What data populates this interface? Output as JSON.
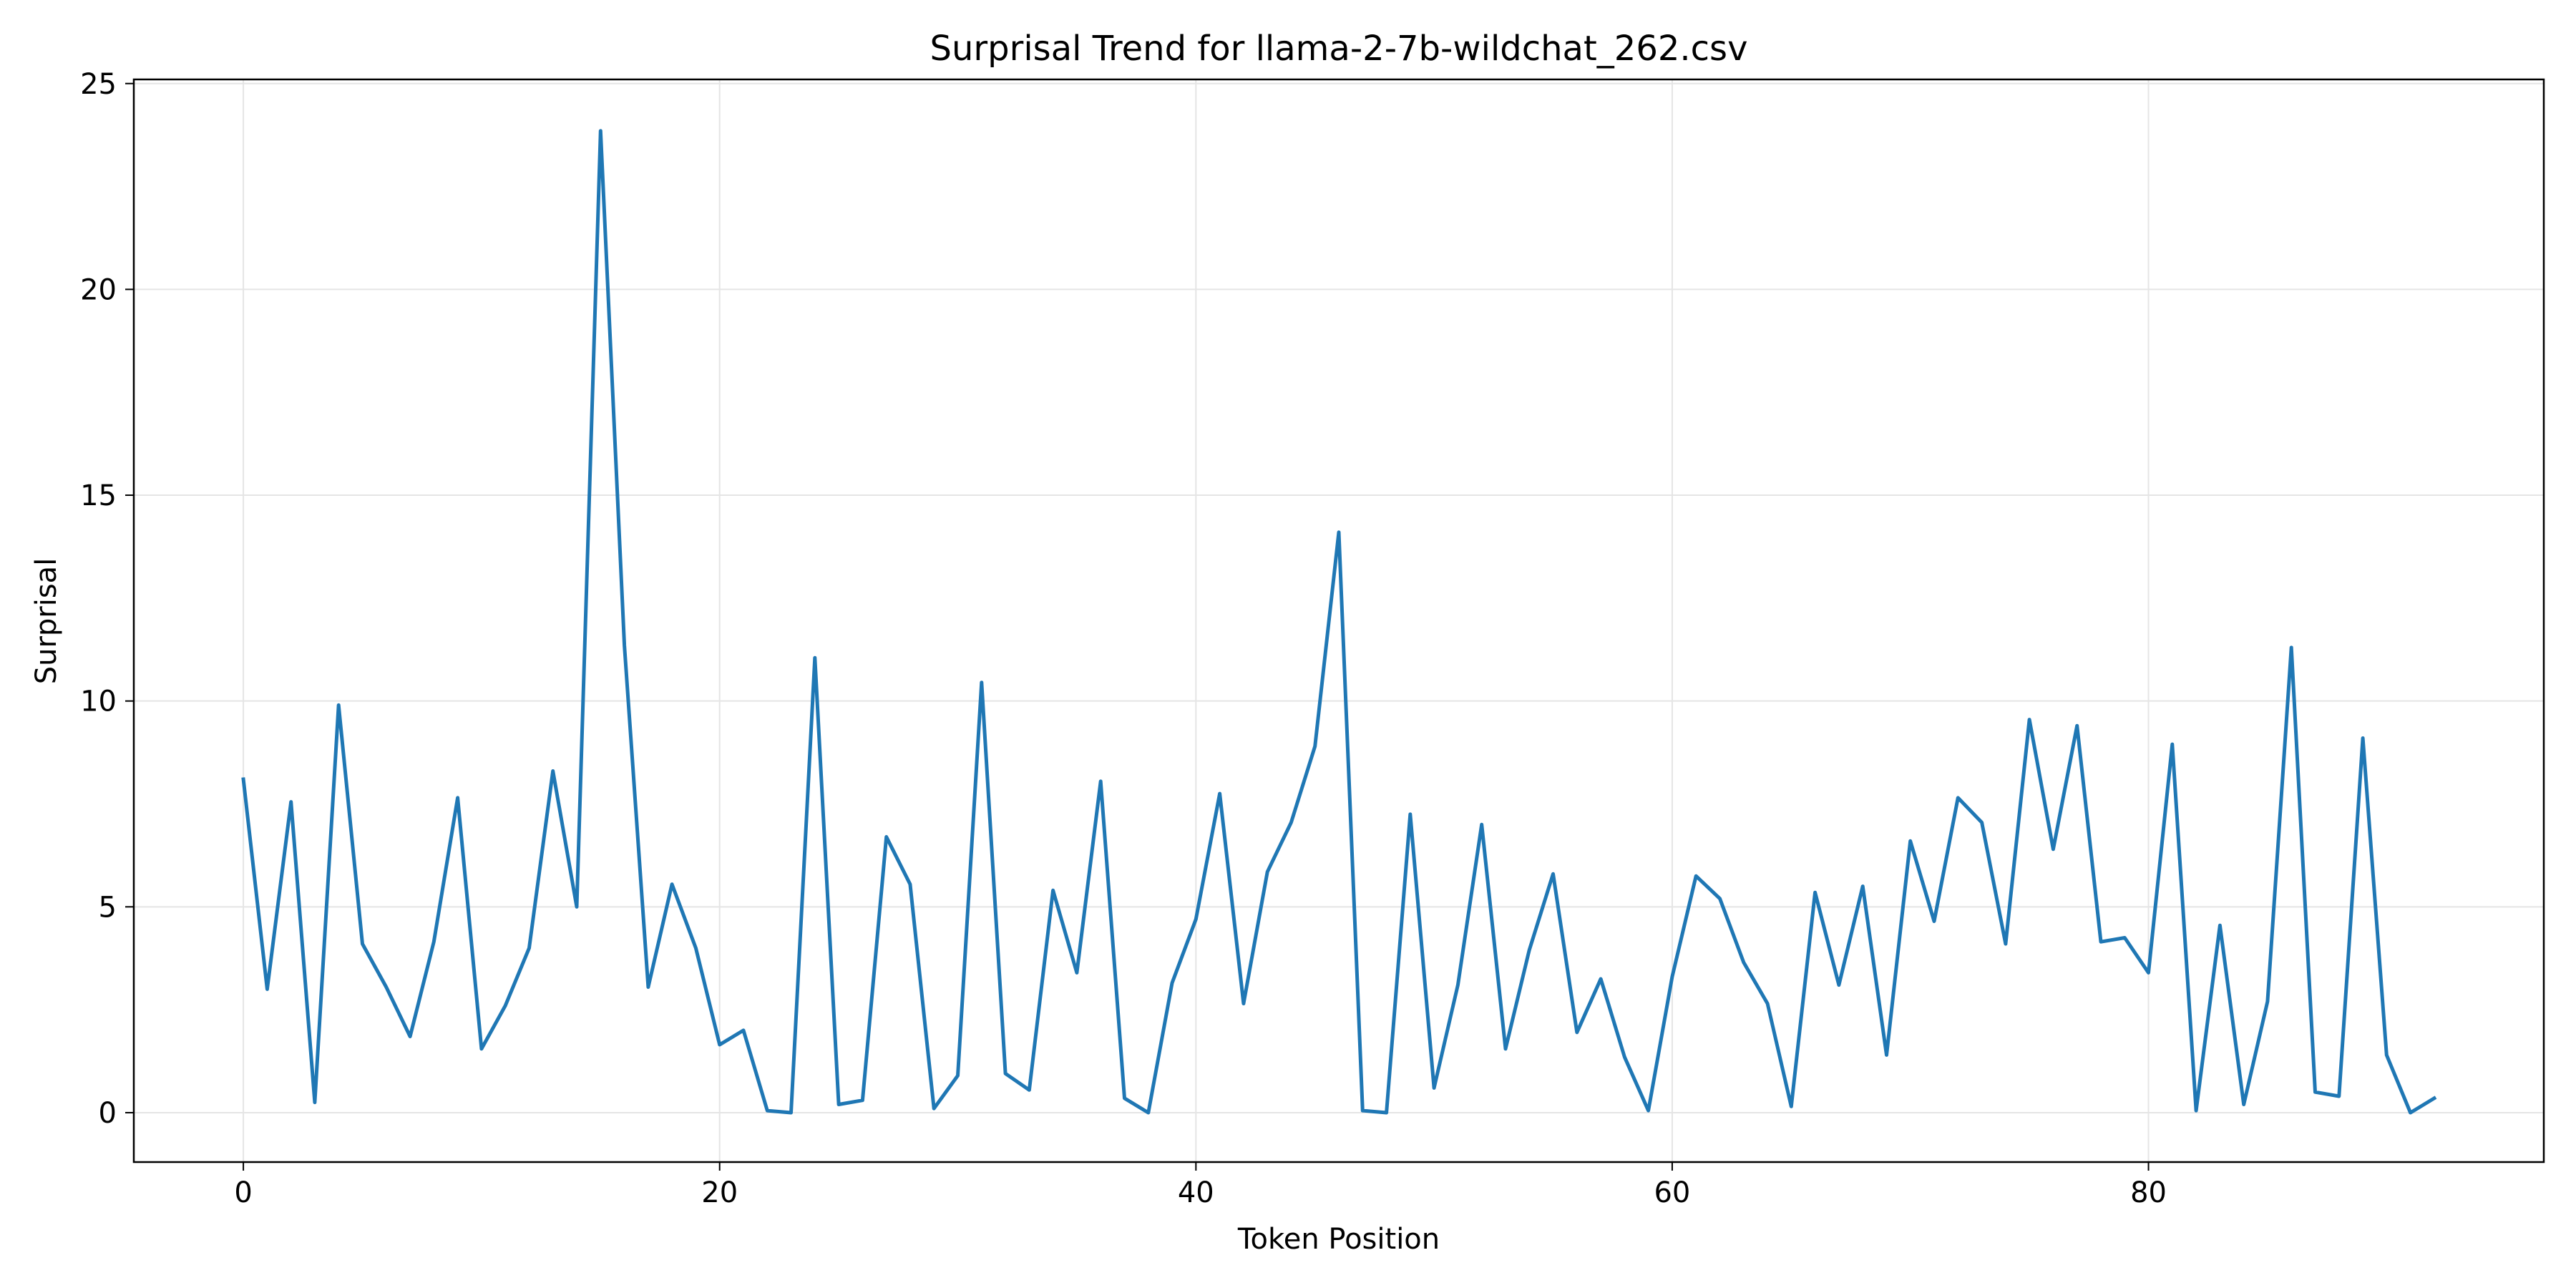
{
  "chart_data": {
    "type": "line",
    "title": "Surprisal Trend for llama-2-7b-wildchat_262.csv",
    "xlabel": "Token Position",
    "ylabel": "Surprisal",
    "xlim": [
      -4.6,
      96.6
    ],
    "ylim": [
      -1.2,
      25.1
    ],
    "xticks": [
      0,
      20,
      40,
      60,
      80
    ],
    "yticks": [
      0,
      5,
      10,
      15,
      20,
      25
    ],
    "grid": true,
    "line_color": "#1f77b4",
    "series": [
      {
        "x": [
          0,
          1,
          2,
          3,
          4,
          5,
          6,
          7,
          8,
          9,
          10,
          11,
          12,
          13,
          14,
          15,
          16,
          17,
          18,
          19,
          20,
          21,
          22,
          23,
          24,
          25,
          26,
          27,
          28,
          29,
          30,
          31,
          32,
          33,
          34,
          35,
          36,
          37,
          38,
          39,
          40,
          41,
          42,
          43,
          44,
          45,
          46,
          47,
          48,
          49,
          50,
          51,
          52,
          53,
          54,
          55,
          56,
          57,
          58,
          59,
          60,
          61,
          62,
          63,
          64,
          65,
          66,
          67,
          68,
          69,
          70,
          71,
          72,
          73,
          74,
          75,
          76,
          77,
          78,
          79,
          80,
          81,
          82,
          83,
          84,
          85,
          86,
          87,
          88,
          89,
          90,
          91,
          92
        ],
        "values": [
          8.1,
          3.0,
          7.55,
          0.25,
          9.9,
          4.1,
          3.05,
          1.85,
          4.15,
          7.65,
          1.55,
          2.6,
          4.0,
          8.3,
          5.0,
          23.85,
          11.35,
          3.05,
          5.55,
          4.0,
          1.65,
          2.0,
          0.05,
          0.0,
          11.05,
          0.2,
          0.3,
          6.7,
          5.55,
          0.1,
          0.9,
          10.45,
          0.95,
          0.55,
          5.4,
          3.4,
          8.05,
          0.35,
          0.0,
          3.15,
          4.7,
          7.75,
          2.65,
          5.85,
          7.05,
          8.9,
          14.1,
          0.05,
          0.0,
          7.25,
          0.6,
          3.1,
          7.0,
          1.55,
          3.95,
          5.8,
          1.95,
          3.25,
          1.35,
          0.05,
          3.3,
          5.75,
          5.2,
          3.65,
          2.65,
          0.15,
          5.35,
          3.1,
          5.5,
          1.4,
          6.6,
          4.65,
          7.65,
          7.05,
          4.1,
          9.55,
          6.4,
          9.4,
          4.15,
          4.25,
          3.4,
          8.95,
          0.05,
          4.55,
          0.2,
          2.7,
          11.3,
          0.5,
          0.4,
          9.1,
          1.4,
          0.0,
          0.35
        ]
      }
    ]
  }
}
